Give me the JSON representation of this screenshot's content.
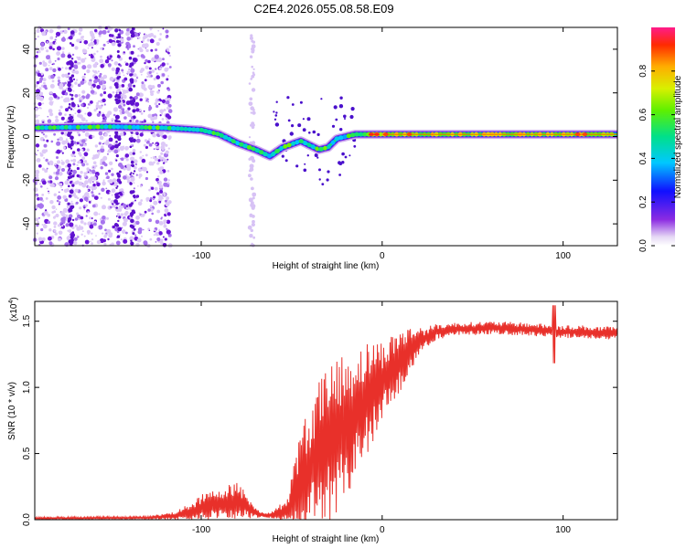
{
  "title": "C2E4.2026.055.08.58.E09",
  "chart_data": [
    {
      "type": "heatmap",
      "name": "spectrogram",
      "xlabel": "Height of straight line (km)",
      "ylabel": "Frequency (Hz)",
      "xlim": [
        -192,
        130
      ],
      "ylim": [
        -50,
        50
      ],
      "xticks": [
        -100,
        0,
        100
      ],
      "xtick_labels": [
        "-100",
        "0",
        "100"
      ],
      "yticks": [
        -40,
        -20,
        0,
        20,
        40
      ],
      "ytick_labels": [
        "-40",
        "-20",
        "0",
        "20",
        "40"
      ],
      "colorbar": {
        "label": "Normalized spectral amplitude",
        "range": [
          0,
          1
        ],
        "ticks": [
          0.0,
          0.2,
          0.4,
          0.6,
          0.8
        ],
        "tick_labels": [
          "0.0",
          "0.2",
          "0.4",
          "0.6",
          "0.8"
        ]
      },
      "ridge": {
        "x": [
          -192,
          -150,
          -120,
          -100,
          -90,
          -80,
          -70,
          -62,
          -55,
          -45,
          -35,
          -30,
          -25,
          -20,
          -15,
          -10,
          0,
          20,
          60,
          100,
          130
        ],
        "y": [
          4,
          4.5,
          4,
          3,
          1,
          -3,
          -6,
          -9,
          -5,
          -2,
          -6,
          -5,
          -1,
          0,
          1,
          1,
          1,
          1,
          1,
          1,
          1
        ]
      }
    },
    {
      "type": "line",
      "name": "snr",
      "xlabel": "Height of straight line (km)",
      "ylabel": "SNR (10 * v/v)",
      "scale_note": "(x10",
      "scale_exp": "4",
      "scale_close": ")",
      "xlim": [
        -192,
        130
      ],
      "ylim": [
        0,
        1.65
      ],
      "xticks": [
        -100,
        0,
        100
      ],
      "xtick_labels": [
        "-100",
        "0",
        "100"
      ],
      "yticks": [
        0,
        0.5,
        1.0,
        1.5
      ],
      "ytick_labels": [
        "0.0",
        "0.5",
        "1.0",
        "1.5"
      ],
      "line_color": "#e8302a",
      "envelope": {
        "x": [
          -192,
          -130,
          -115,
          -105,
          -100,
          -90,
          -80,
          -75,
          -70,
          -65,
          -58,
          -52,
          -48,
          -45,
          -40,
          -35,
          -30,
          -25,
          -20,
          -15,
          -10,
          -5,
          0,
          5,
          10,
          15,
          20,
          25,
          30,
          40,
          60,
          80,
          90,
          95,
          100,
          110,
          120,
          130
        ],
        "mean": [
          0.01,
          0.015,
          0.03,
          0.06,
          0.09,
          0.12,
          0.14,
          0.1,
          0.05,
          0.03,
          0.04,
          0.08,
          0.18,
          0.3,
          0.4,
          0.5,
          0.58,
          0.65,
          0.7,
          0.8,
          0.88,
          0.98,
          1.05,
          1.12,
          1.2,
          1.28,
          1.34,
          1.38,
          1.42,
          1.44,
          1.45,
          1.44,
          1.43,
          1.42,
          1.42,
          1.42,
          1.41,
          1.41
        ],
        "amp": [
          0.01,
          0.01,
          0.03,
          0.07,
          0.1,
          0.12,
          0.15,
          0.1,
          0.04,
          0.02,
          0.05,
          0.12,
          0.3,
          0.4,
          0.45,
          0.55,
          0.6,
          0.6,
          0.55,
          0.5,
          0.45,
          0.4,
          0.3,
          0.28,
          0.25,
          0.18,
          0.12,
          0.08,
          0.06,
          0.05,
          0.05,
          0.05,
          0.05,
          0.05,
          0.05,
          0.05,
          0.05,
          0.05
        ]
      }
    }
  ],
  "colors": {
    "background": "#ffffff",
    "axis": "#000000"
  }
}
